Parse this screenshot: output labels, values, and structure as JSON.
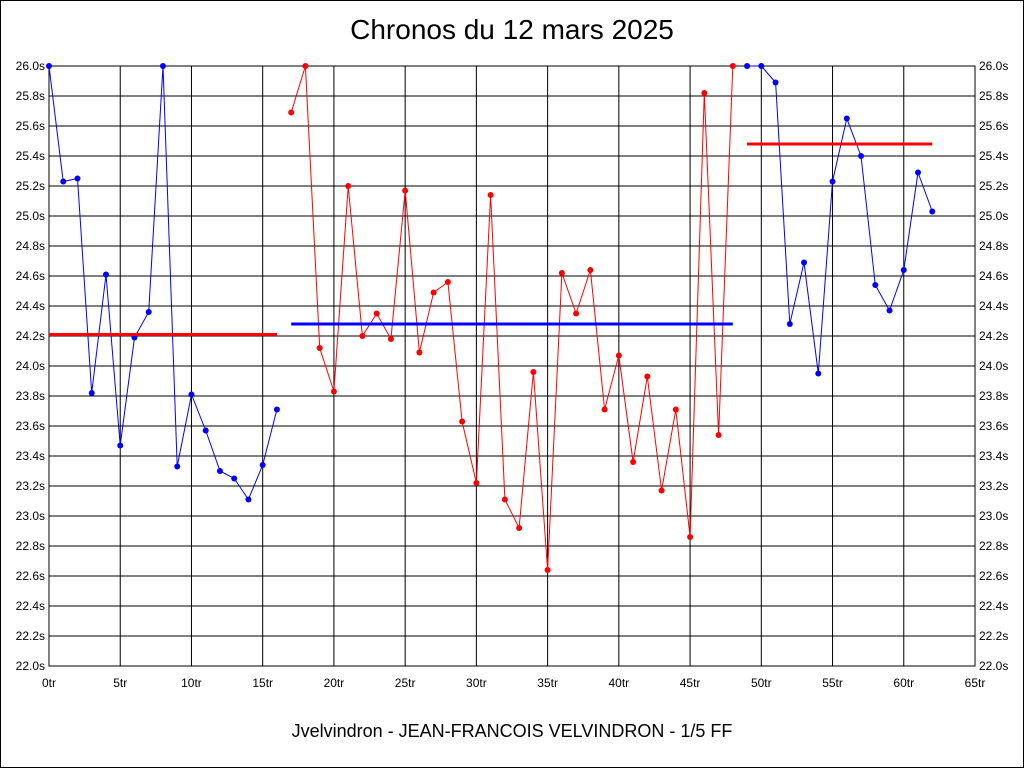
{
  "title": "Chronos du 12 mars 2025",
  "footer": "Jvelvindron - JEAN-FRANCOIS VELVINDRON - 1/5 FF",
  "chart_data": {
    "type": "line",
    "title": "Chronos du 12 mars 2025",
    "xlim": [
      0,
      65
    ],
    "ylim": [
      22.0,
      26.0
    ],
    "x_ticks": [
      0,
      5,
      10,
      15,
      20,
      25,
      30,
      35,
      40,
      45,
      50,
      55,
      60,
      65
    ],
    "x_tick_labels": [
      "0tr",
      "5tr",
      "10tr",
      "15tr",
      "20tr",
      "25tr",
      "30tr",
      "35tr",
      "40tr",
      "45tr",
      "50tr",
      "55tr",
      "60tr",
      "65tr"
    ],
    "y_ticks": [
      22.0,
      22.2,
      22.4,
      22.6,
      22.8,
      23.0,
      23.2,
      23.4,
      23.6,
      23.8,
      24.0,
      24.2,
      24.4,
      24.6,
      24.8,
      25.0,
      25.2,
      25.4,
      25.6,
      25.8,
      26.0
    ],
    "y_tick_labels": [
      "22.0s",
      "22.2s",
      "22.4s",
      "22.6s",
      "22.8s",
      "23.0s",
      "23.2s",
      "23.4s",
      "23.6s",
      "23.8s",
      "24.0s",
      "24.2s",
      "24.4s",
      "24.6s",
      "24.8s",
      "25.0s",
      "25.2s",
      "25.4s",
      "25.6s",
      "25.8s",
      "26.0s"
    ],
    "grid": true,
    "colors": {
      "blue": "#0000ff",
      "red": "#ff0000"
    },
    "series": [
      {
        "color": "blue",
        "x": [
          0,
          1,
          2,
          3,
          4,
          5,
          6,
          7,
          8,
          9,
          10,
          11,
          12,
          13,
          14,
          15,
          16
        ],
        "y": [
          26.0,
          25.23,
          25.25,
          23.82,
          24.61,
          23.47,
          24.19,
          24.36,
          26.0,
          23.33,
          23.81,
          23.57,
          23.3,
          23.25,
          23.11,
          23.34,
          23.71
        ]
      },
      {
        "color": "red",
        "x": [
          17,
          18,
          19,
          20,
          21,
          22,
          23,
          24,
          25,
          26,
          27,
          28,
          29,
          30,
          31,
          32,
          33,
          34,
          35,
          36,
          37,
          38,
          39,
          40,
          41,
          42,
          43,
          44,
          45,
          46,
          47,
          48
        ],
        "y": [
          25.69,
          26.0,
          24.12,
          23.83,
          25.2,
          24.2,
          24.35,
          24.18,
          25.17,
          24.09,
          24.49,
          24.56,
          23.63,
          23.22,
          25.14,
          23.11,
          22.92,
          23.96,
          22.64,
          24.62,
          24.35,
          24.64,
          23.71,
          24.07,
          23.36,
          23.93,
          23.17,
          23.71,
          22.86,
          25.82,
          23.54,
          26.0
        ]
      },
      {
        "color": "blue",
        "x": [
          49,
          50,
          51,
          52,
          53,
          54,
          55,
          56,
          57,
          58,
          59,
          60,
          61,
          62
        ],
        "y": [
          26.0,
          26.0,
          25.89,
          24.28,
          24.69,
          23.95,
          25.23,
          25.65,
          25.4,
          24.54,
          24.37,
          24.64,
          25.29,
          25.03
        ]
      }
    ],
    "averages": [
      {
        "color": "red",
        "x": [
          0,
          16
        ],
        "y": 24.21
      },
      {
        "color": "blue",
        "x": [
          17,
          48
        ],
        "y": 24.28
      },
      {
        "color": "red",
        "x": [
          49,
          62
        ],
        "y": 25.48
      }
    ]
  }
}
